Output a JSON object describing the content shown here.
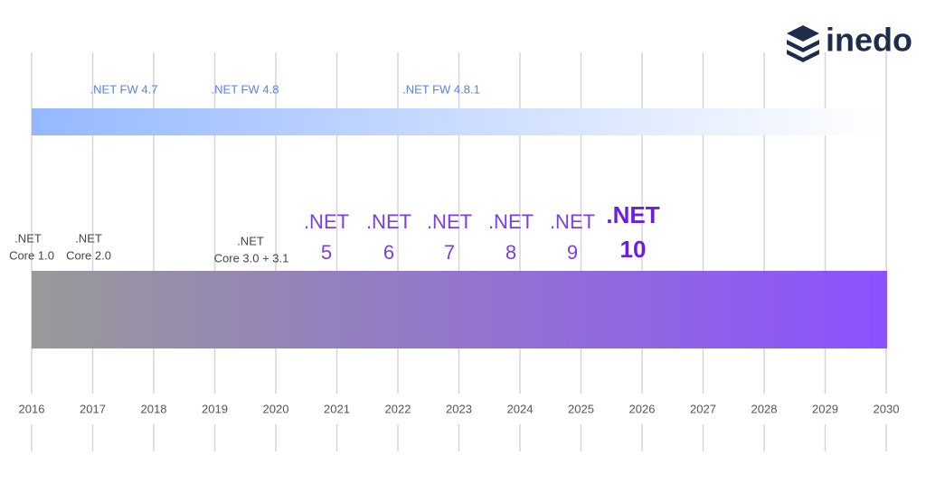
{
  "brand": "inedo",
  "years": [
    "2016",
    "2017",
    "2018",
    "2019",
    "2020",
    "2021",
    "2022",
    "2023",
    "2024",
    "2025",
    "2026",
    "2027",
    "2028",
    "2029",
    "2030"
  ],
  "framework_labels": [
    ".NET FW 4.7",
    ".NET FW 4.8",
    ".NET FW 4.8.1"
  ],
  "core_labels": [
    {
      "line1": ".NET",
      "line2": "Core 1.0"
    },
    {
      "line1": ".NET",
      "line2": "Core 2.0"
    },
    {
      "line1": ".NET",
      "line2": "Core 3.0 + 3.1"
    }
  ],
  "net_versions": [
    {
      "line1": ".NET",
      "line2": "5"
    },
    {
      "line1": ".NET",
      "line2": "6"
    },
    {
      "line1": ".NET",
      "line2": "7"
    },
    {
      "line1": ".NET",
      "line2": "8"
    },
    {
      "line1": ".NET",
      "line2": "9"
    },
    {
      "line1": ".NET",
      "line2": "10"
    }
  ]
}
